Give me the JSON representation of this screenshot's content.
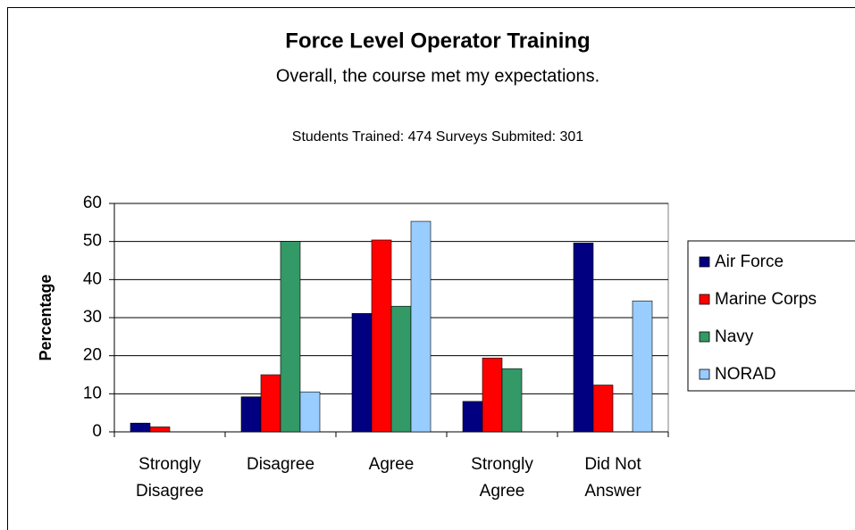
{
  "chart_data": {
    "type": "bar",
    "title": "Force Level Operator Training",
    "subtitle": "Overall, the course met my expectations.",
    "annotation": "Students Trained: 474  Surveys Submited: 301",
    "y_label": "Percentage",
    "categories": [
      "Strongly Disagree",
      "Disagree",
      "Agree",
      "Strongly Agree",
      "Did Not Answer"
    ],
    "series": [
      {
        "name": "Air Force",
        "color": "#000080",
        "values": [
          2.3,
          9.2,
          31.1,
          8,
          49.6
        ]
      },
      {
        "name": "Marine Corps",
        "color": "#ff0000",
        "values": [
          1.3,
          15,
          50.4,
          19.4,
          12.3
        ]
      },
      {
        "name": "Navy",
        "color": "#339966",
        "values": [
          0,
          50,
          33,
          16.6,
          0
        ]
      },
      {
        "name": "NORAD",
        "color": "#99ccff",
        "values": [
          0,
          10.5,
          55.3,
          0,
          34.4
        ]
      }
    ],
    "ylim": [
      0,
      60
    ],
    "yticks": [
      0,
      10,
      20,
      30,
      40,
      50,
      60
    ],
    "grid": true,
    "legend": "right"
  }
}
